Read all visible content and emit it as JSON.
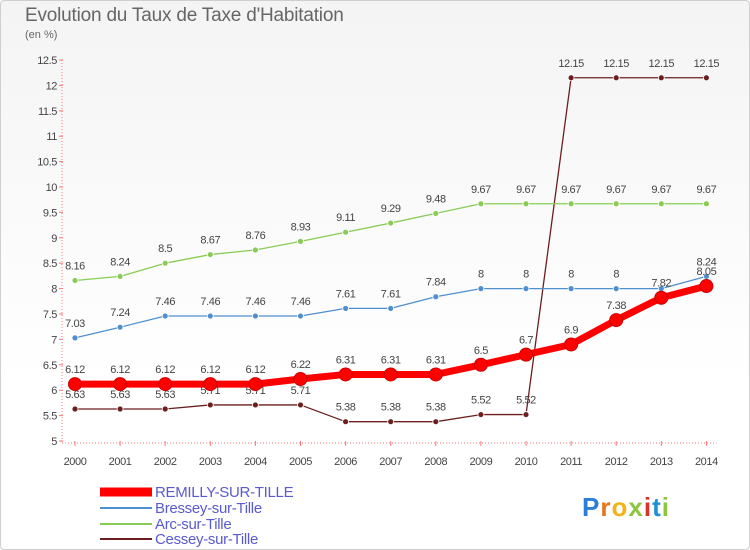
{
  "title": "Evolution du Taux de Taxe d'Habitation",
  "unit": "(en %)",
  "brand": {
    "text": "Proxiti",
    "letter_colors": [
      "#2a7dd8",
      "#e8731a",
      "#f2b21a",
      "#8cc63f",
      "#d9322e",
      "#1c8fd6",
      "#8cc63f"
    ]
  },
  "colors": {
    "REMILLY-SUR-TILLE": "#ff0000",
    "Bressey-sur-Tille": "#4f8fd0",
    "Arc-sur-Tille": "#88cc55",
    "Cessey-sur-Tille": "#6b1f1f"
  },
  "chart_data": {
    "type": "line",
    "title": "Evolution du Taux de Taxe d'Habitation",
    "ylabel": "(en %)",
    "xlabel": "",
    "x": [
      "2000",
      "2001",
      "2002",
      "2003",
      "2004",
      "2005",
      "2006",
      "2007",
      "2008",
      "2009",
      "2010",
      "2011",
      "2012",
      "2013",
      "2014"
    ],
    "ylim": [
      5,
      12.5
    ],
    "yticks": [
      "5",
      "5.5",
      "6",
      "6.5",
      "7",
      "7.5",
      "8",
      "8.5",
      "9",
      "9.5",
      "10",
      "10.5",
      "11",
      "11.5",
      "12",
      "12.5"
    ],
    "grid": false,
    "legend_position": "bottom-left",
    "series": [
      {
        "name": "REMILLY-SUR-TILLE",
        "values": [
          6.12,
          6.12,
          6.12,
          6.12,
          6.12,
          6.22,
          6.31,
          6.31,
          6.31,
          6.5,
          6.7,
          6.9,
          7.38,
          7.82,
          8.05
        ],
        "labels": [
          "6.12",
          "6.12",
          "6.12",
          "6.12",
          "6.12",
          "6.22",
          "6.31",
          "6.31",
          "6.31",
          "6.5",
          "6.7",
          "6.9",
          "7.38",
          "7.82",
          "8.05"
        ]
      },
      {
        "name": "Bressey-sur-Tille",
        "values": [
          7.03,
          7.24,
          7.46,
          7.46,
          7.46,
          7.46,
          7.61,
          7.61,
          7.84,
          8,
          8,
          8,
          8,
          8,
          8.24
        ],
        "labels": [
          "7.03",
          "7.24",
          "7.46",
          "7.46",
          "7.46",
          "7.46",
          "7.61",
          "7.61",
          "7.84",
          "8",
          "8",
          "8",
          "8",
          "",
          "8.24"
        ]
      },
      {
        "name": "Arc-sur-Tille",
        "values": [
          8.16,
          8.24,
          8.5,
          8.67,
          8.76,
          8.93,
          9.11,
          9.29,
          9.48,
          9.67,
          9.67,
          9.67,
          9.67,
          9.67,
          9.67
        ],
        "labels": [
          "8.16",
          "8.24",
          "8.5",
          "8.67",
          "8.76",
          "8.93",
          "9.11",
          "9.29",
          "9.48",
          "9.67",
          "9.67",
          "9.67",
          "9.67",
          "9.67",
          "9.67"
        ]
      },
      {
        "name": "Cessey-sur-Tille",
        "values": [
          5.63,
          5.63,
          5.63,
          5.71,
          5.71,
          5.71,
          5.38,
          5.38,
          5.38,
          5.52,
          5.52,
          12.15,
          12.15,
          12.15,
          12.15
        ],
        "labels": [
          "5.63",
          "5.63",
          "5.63",
          "5.71",
          "5.71",
          "5.71",
          "5.38",
          "5.38",
          "5.38",
          "5.52",
          "5.52",
          "12.15",
          "12.15",
          "12.15",
          "12.15"
        ]
      }
    ]
  }
}
